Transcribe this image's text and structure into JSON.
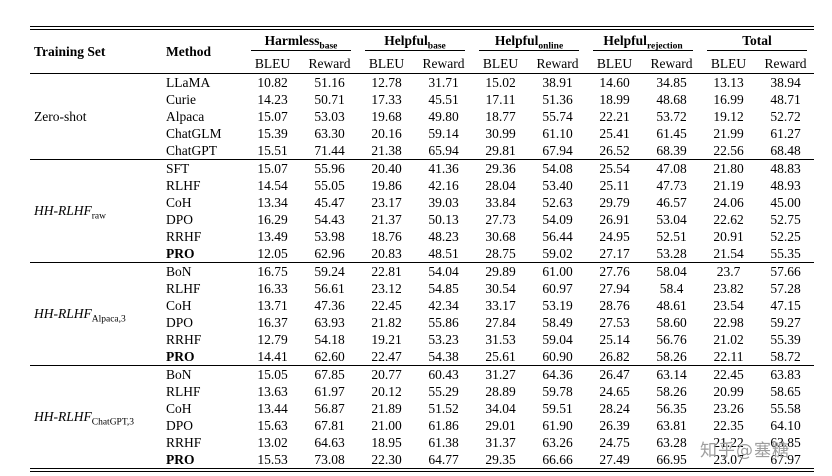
{
  "watermark": {
    "text": "知乎@塞糖"
  },
  "table": {
    "headers": {
      "training_set": "Training Set",
      "method": "Method"
    },
    "groups": [
      {
        "label": "Harmless",
        "sub": "base"
      },
      {
        "label": "Helpful",
        "sub": "base"
      },
      {
        "label": "Helpful",
        "sub": "online"
      },
      {
        "label": "Helpful",
        "sub": "rejection"
      },
      {
        "label": "Total",
        "sub": ""
      }
    ],
    "metrics": [
      "BLEU",
      "Reward"
    ],
    "sections": [
      {
        "training_set": "Zero-shot",
        "subscript": "",
        "italic": false,
        "rows": [
          {
            "method": "LLaMA",
            "bold": false,
            "values": [
              "10.82",
              "51.16",
              "12.78",
              "31.71",
              "15.02",
              "38.91",
              "14.60",
              "34.85",
              "13.13",
              "38.94"
            ]
          },
          {
            "method": "Curie",
            "bold": false,
            "values": [
              "14.23",
              "50.71",
              "17.33",
              "45.51",
              "17.11",
              "51.36",
              "18.99",
              "48.68",
              "16.99",
              "48.71"
            ]
          },
          {
            "method": "Alpaca",
            "bold": false,
            "values": [
              "15.07",
              "53.03",
              "19.68",
              "49.80",
              "18.77",
              "55.74",
              "22.21",
              "53.72",
              "19.12",
              "52.72"
            ]
          },
          {
            "method": "ChatGLM",
            "bold": false,
            "values": [
              "15.39",
              "63.30",
              "20.16",
              "59.14",
              "30.99",
              "61.10",
              "25.41",
              "61.45",
              "21.99",
              "61.27"
            ]
          },
          {
            "method": "ChatGPT",
            "bold": false,
            "values": [
              "15.51",
              "71.44",
              "21.38",
              "65.94",
              "29.81",
              "67.94",
              "26.52",
              "68.39",
              "22.56",
              "68.48"
            ]
          }
        ]
      },
      {
        "training_set": "HH-RLHF",
        "subscript": "raw",
        "italic": true,
        "rows": [
          {
            "method": "SFT",
            "bold": false,
            "values": [
              "15.07",
              "55.96",
              "20.40",
              "41.36",
              "29.36",
              "54.08",
              "25.54",
              "47.08",
              "21.80",
              "48.83"
            ]
          },
          {
            "method": "RLHF",
            "bold": false,
            "values": [
              "14.54",
              "55.05",
              "19.86",
              "42.16",
              "28.04",
              "53.40",
              "25.11",
              "47.73",
              "21.19",
              "48.93"
            ]
          },
          {
            "method": "CoH",
            "bold": false,
            "values": [
              "13.34",
              "45.47",
              "23.17",
              "39.03",
              "33.84",
              "52.63",
              "29.79",
              "46.57",
              "24.06",
              "45.00"
            ]
          },
          {
            "method": "DPO",
            "bold": false,
            "values": [
              "16.29",
              "54.43",
              "21.37",
              "50.13",
              "27.73",
              "54.09",
              "26.91",
              "53.04",
              "22.62",
              "52.75"
            ]
          },
          {
            "method": "RRHF",
            "bold": false,
            "values": [
              "13.49",
              "53.98",
              "18.76",
              "48.23",
              "30.68",
              "56.44",
              "24.95",
              "52.51",
              "20.91",
              "52.25"
            ]
          },
          {
            "method": "PRO",
            "bold": true,
            "values": [
              "12.05",
              "62.96",
              "20.83",
              "48.51",
              "28.75",
              "59.02",
              "27.17",
              "53.28",
              "21.54",
              "55.35"
            ]
          }
        ]
      },
      {
        "training_set": "HH-RLHF",
        "subscript": "Alpaca,3",
        "italic": true,
        "rows": [
          {
            "method": "BoN",
            "bold": false,
            "values": [
              "16.75",
              "59.24",
              "22.81",
              "54.04",
              "29.89",
              "61.00",
              "27.76",
              "58.04",
              "23.7",
              "57.66"
            ]
          },
          {
            "method": "RLHF",
            "bold": false,
            "values": [
              "16.33",
              "56.61",
              "23.12",
              "54.85",
              "30.54",
              "60.97",
              "27.94",
              "58.4",
              "23.82",
              "57.28"
            ]
          },
          {
            "method": "CoH",
            "bold": false,
            "values": [
              "13.71",
              "47.36",
              "22.45",
              "42.34",
              "33.17",
              "53.19",
              "28.76",
              "48.61",
              "23.54",
              "47.15"
            ]
          },
          {
            "method": "DPO",
            "bold": false,
            "values": [
              "16.37",
              "63.93",
              "21.82",
              "55.86",
              "27.84",
              "58.49",
              "27.53",
              "58.60",
              "22.98",
              "59.27"
            ]
          },
          {
            "method": "RRHF",
            "bold": false,
            "values": [
              "12.79",
              "54.18",
              "19.21",
              "53.23",
              "31.53",
              "59.04",
              "25.14",
              "56.76",
              "21.02",
              "55.39"
            ]
          },
          {
            "method": "PRO",
            "bold": true,
            "values": [
              "14.41",
              "62.60",
              "22.47",
              "54.38",
              "25.61",
              "60.90",
              "26.82",
              "58.26",
              "22.11",
              "58.72"
            ]
          }
        ]
      },
      {
        "training_set": "HH-RLHF",
        "subscript": "ChatGPT,3",
        "italic": true,
        "rows": [
          {
            "method": "BoN",
            "bold": false,
            "values": [
              "15.05",
              "67.85",
              "20.77",
              "60.43",
              "31.27",
              "64.36",
              "26.47",
              "63.14",
              "22.45",
              "63.83"
            ]
          },
          {
            "method": "RLHF",
            "bold": false,
            "values": [
              "13.63",
              "61.97",
              "20.12",
              "55.29",
              "28.89",
              "59.78",
              "24.65",
              "58.26",
              "20.99",
              "58.65"
            ]
          },
          {
            "method": "CoH",
            "bold": false,
            "values": [
              "13.44",
              "56.87",
              "21.89",
              "51.52",
              "34.04",
              "59.51",
              "28.24",
              "56.35",
              "23.26",
              "55.58"
            ]
          },
          {
            "method": "DPO",
            "bold": false,
            "values": [
              "15.63",
              "67.81",
              "21.00",
              "61.86",
              "29.01",
              "61.90",
              "26.39",
              "63.81",
              "22.35",
              "64.10"
            ]
          },
          {
            "method": "RRHF",
            "bold": false,
            "values": [
              "13.02",
              "64.63",
              "18.95",
              "61.38",
              "31.37",
              "63.26",
              "24.75",
              "63.28",
              "21.22",
              "63.85"
            ]
          },
          {
            "method": "PRO",
            "bold": true,
            "values": [
              "15.53",
              "73.08",
              "22.30",
              "64.77",
              "29.35",
              "66.66",
              "27.49",
              "66.95",
              "23.07",
              "67.97"
            ]
          }
        ]
      }
    ]
  }
}
